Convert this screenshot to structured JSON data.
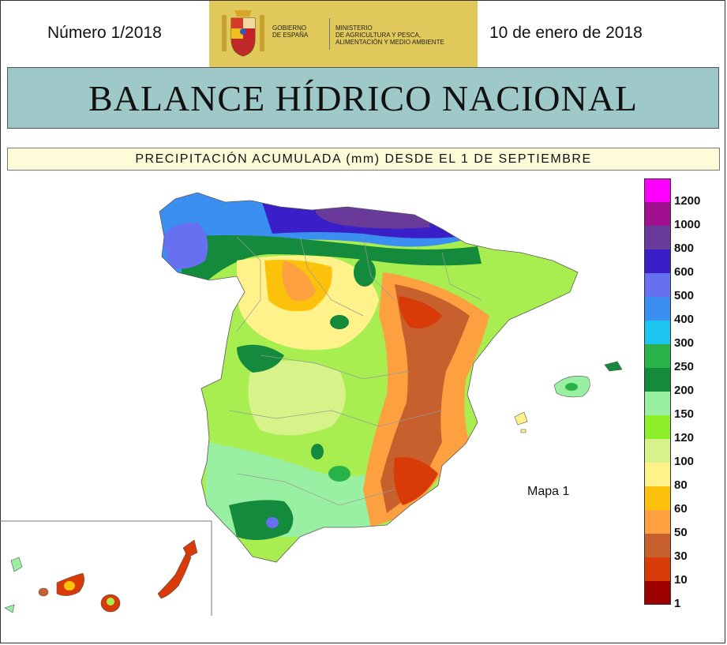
{
  "header": {
    "issue": "Número 1/2018",
    "date": "10 de enero de 2018",
    "logo": {
      "gov_text": "GOBIERNO\nDE ESPAÑA",
      "ministry_text": "MINISTERIO\nDE AGRICULTURA Y PESCA,\nALIMENTACIÓN Y MEDIO AMBIENTE"
    }
  },
  "title": "BALANCE HÍDRICO NACIONAL",
  "subtitle": "PRECIPITACIÓN ACUMULADA (mm) DESDE EL 1 DE SEPTIEMBRE",
  "map": {
    "label": "Mapa 1",
    "regions": [
      "Península",
      "Baleares",
      "Canarias"
    ]
  },
  "legend": {
    "items": [
      {
        "value": "1200",
        "color": "#ff00ff"
      },
      {
        "value": "1000",
        "color": "#a0108f"
      },
      {
        "value": "800",
        "color": "#6a3a9a"
      },
      {
        "value": "600",
        "color": "#3a1fc8"
      },
      {
        "value": "500",
        "color": "#6670f0"
      },
      {
        "value": "400",
        "color": "#3a8ff0"
      },
      {
        "value": "300",
        "color": "#1ec4f0"
      },
      {
        "value": "250",
        "color": "#2ab24a"
      },
      {
        "value": "200",
        "color": "#138a3c"
      },
      {
        "value": "150",
        "color": "#9af0a2"
      },
      {
        "value": "120",
        "color": "#8ef02a"
      },
      {
        "value": "100",
        "color": "#d8f28a"
      },
      {
        "value": "80",
        "color": "#fff28a"
      },
      {
        "value": "60",
        "color": "#fcc10a"
      },
      {
        "value": "50",
        "color": "#fca040"
      },
      {
        "value": "30",
        "color": "#c8602e"
      },
      {
        "value": "10",
        "color": "#d83a08"
      },
      {
        "value": "1",
        "color": "#9e0000"
      }
    ]
  }
}
